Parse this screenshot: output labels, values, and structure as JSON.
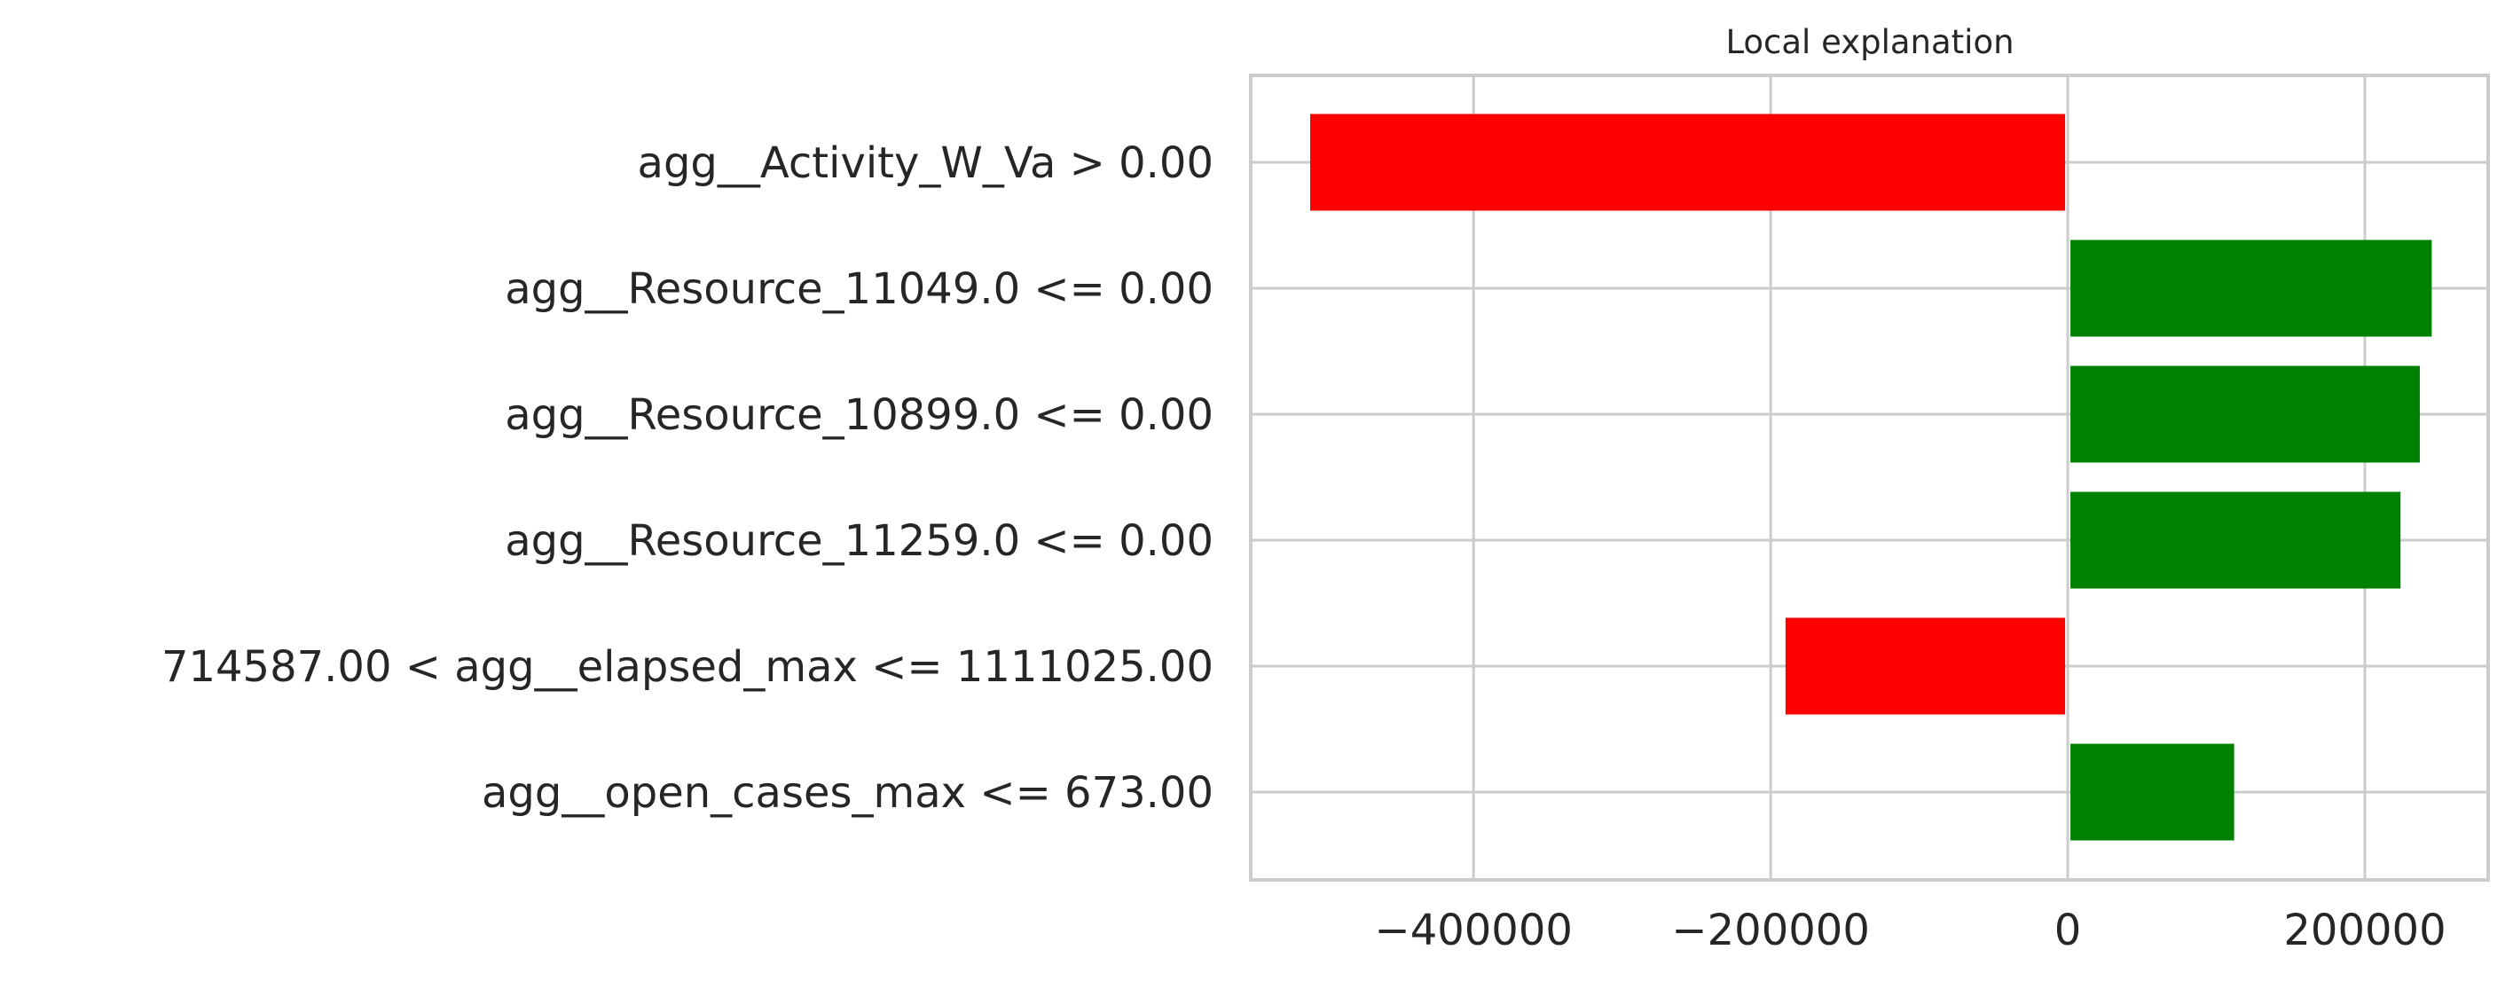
{
  "chart_data": {
    "type": "bar",
    "orientation": "horizontal",
    "title": "Local explanation",
    "xlabel": "",
    "ylabel": "",
    "categories": [
      "agg__Activity_W_Va > 0.00",
      "agg__Resource_11049.0 <= 0.00",
      "agg__Resource_10899.0 <= 0.00",
      "agg__Resource_11259.0 <= 0.00",
      "714587.00 < agg__elapsed_max <= 1111025.00",
      "agg__open_cases_max <= 673.00"
    ],
    "values": [
      -510000,
      245000,
      237000,
      224000,
      -190000,
      112000
    ],
    "xlim": [
      -550000,
      283000
    ],
    "xticks": [
      -400000,
      -200000,
      0,
      200000
    ],
    "xtick_labels": [
      "−400000",
      "−200000",
      "0",
      "200000"
    ],
    "grid": true,
    "colors": {
      "positive": "#008000",
      "negative": "#ff0000",
      "grid": "#cccccc",
      "axes": "#cccccc",
      "text": "#262626"
    }
  }
}
